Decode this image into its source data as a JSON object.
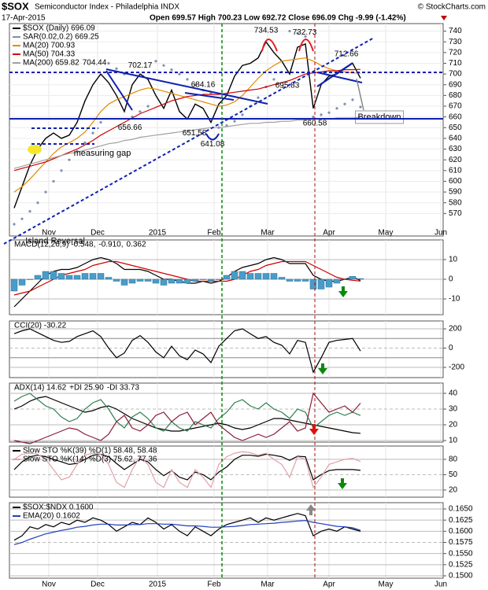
{
  "header": {
    "symbol": "$SOX",
    "name": "Semiconductor Index - Philadelphia INDX",
    "date": "17-Apr-2015",
    "quote": "Open 699.57 High 700.23 Low 692.72 Close 696.09 Chg -9.99 (-1.42%)",
    "credit": "© StockCharts.com"
  },
  "chart_data": [
    {
      "type": "line",
      "legend": "stacked",
      "xlim": [
        -0.6,
        54.5
      ],
      "xticks": [
        {
          "value": 4.4,
          "label": "Nov"
        },
        {
          "value": 10.6,
          "label": "Dec"
        },
        {
          "value": 18.2,
          "label": "2015"
        },
        {
          "value": 25.4,
          "label": "Feb"
        },
        {
          "value": 32.2,
          "label": "Mar"
        },
        {
          "value": 40,
          "label": "Apr"
        },
        {
          "value": 47.2,
          "label": "May"
        },
        {
          "value": 54.2,
          "label": "Jun"
        }
      ],
      "ylim": [
        549,
        747
      ],
      "yticks": [
        570,
        580,
        590,
        600,
        610,
        620,
        630,
        640,
        650,
        660,
        670,
        680,
        690,
        700,
        710,
        720,
        730,
        740
      ],
      "grid": true,
      "series": [
        {
          "name": "$SOX (Daily) 696.09",
          "color": "#000000",
          "kind": "line",
          "values": [
            575,
            595,
            615,
            630,
            640,
            645,
            640,
            643,
            655,
            675,
            690,
            700,
            692,
            680,
            665,
            690,
            700,
            695,
            680,
            668,
            685,
            665,
            658,
            672,
            668,
            655,
            672,
            680,
            698,
            708,
            710,
            715,
            730,
            720,
            712,
            700,
            725,
            728,
            668,
            690,
            698,
            700,
            705,
            710,
            696.09
          ]
        },
        {
          "name": "SAR(0.02,0.2) 669.25",
          "color": "#7f8fb0",
          "kind": "dots",
          "values": [
            560,
            565,
            572,
            580,
            590,
            600,
            610,
            620,
            628,
            636,
            645,
            655,
            710,
            705,
            700,
            660,
            665,
            670,
            712,
            708,
            704,
            700,
            695,
            690,
            685,
            682,
            650,
            652,
            656,
            662,
            670,
            678,
            688,
            695,
            702,
            740,
            738,
            735,
            660,
            662,
            664,
            668,
            672,
            676,
            669.25
          ]
        },
        {
          "name": "MA(20) 700.93",
          "color": "#e08a00",
          "kind": "line",
          "values": [
            590,
            595,
            602,
            610,
            618,
            626,
            632,
            636,
            640,
            646,
            655,
            665,
            672,
            676,
            679,
            682,
            685,
            687,
            686,
            684,
            682,
            680,
            678,
            676,
            674,
            672,
            670,
            671,
            674,
            680,
            688,
            696,
            703,
            708,
            712,
            713,
            714,
            715,
            712,
            708,
            705,
            703,
            702,
            701,
            700.93
          ]
        },
        {
          "name": "MA(50) 704.33",
          "color": "#d00000",
          "kind": "line",
          "values": [
            610,
            612,
            614,
            616,
            618,
            621,
            624,
            627,
            630,
            634,
            638,
            643,
            647,
            651,
            655,
            659,
            663,
            666,
            669,
            672,
            675,
            677,
            679,
            680,
            681,
            681,
            681,
            682,
            683,
            684,
            685,
            686,
            688,
            690,
            692,
            694,
            697,
            700,
            701,
            702,
            703,
            703,
            704,
            704,
            704.33
          ]
        },
        {
          "name": "MA(200) 659.82",
          "color": "#a0a0a0",
          "kind": "line",
          "values": [
            612,
            614,
            616,
            618,
            620,
            622,
            624,
            626,
            627,
            629,
            631,
            633,
            635,
            636,
            638,
            639,
            641,
            642,
            643,
            644,
            645,
            646,
            647,
            648,
            649,
            650,
            650,
            651,
            652,
            653,
            654,
            654,
            655,
            655,
            656,
            656,
            657,
            657,
            658,
            658,
            658,
            659,
            659,
            659,
            659.82
          ]
        }
      ],
      "price_labels": [
        {
          "x": 10.2,
          "value": 704.44,
          "pos": "above"
        },
        {
          "x": 16,
          "value": 702.17,
          "pos": "above"
        },
        {
          "x": 24,
          "value": 684.16,
          "pos": "above"
        },
        {
          "x": 14.7,
          "value": 656.66,
          "pos": "below"
        },
        {
          "x": 22.9,
          "value": 651.58,
          "pos": "below"
        },
        {
          "x": 25.2,
          "value": 641.08,
          "pos": "below"
        },
        {
          "x": 32,
          "value": 734.53,
          "pos": "above"
        },
        {
          "x": 36.9,
          "value": 732.73,
          "pos": "above"
        },
        {
          "x": 34.7,
          "value": 695.83,
          "pos": "below"
        },
        {
          "x": 38.2,
          "value": 660.58,
          "pos": "below"
        },
        {
          "x": 42.2,
          "value": 712.66,
          "pos": "above"
        }
      ],
      "annotations": [
        {
          "text": "measuring gap",
          "x": 11.2,
          "y": 626,
          "color": "#1f3fbf"
        },
        {
          "text": "Breakdown",
          "x": 46.4,
          "y": 659.7,
          "color": "#d00000"
        },
        {
          "text": "Island Reversal",
          "x": 5.2,
          "y": 544,
          "color": "#1f3fbf"
        }
      ]
    },
    {
      "type": "line",
      "legend": "inline",
      "xlim": [
        -0.6,
        54.5
      ],
      "ylim": [
        -18,
        20
      ],
      "yticks": [
        -10,
        0,
        10
      ],
      "grid": true,
      "series": [
        {
          "name": "MACD(12,26,9) -0.548,",
          "color": "#000000",
          "kind": "line",
          "values": [
            -14,
            -10,
            -6,
            -2,
            2,
            4,
            5,
            5,
            6,
            8,
            10,
            11,
            10,
            8,
            5,
            5,
            5,
            4,
            2,
            0,
            0,
            -1,
            -2,
            -2,
            -1,
            -2,
            -1,
            1,
            4,
            6,
            7,
            8,
            10,
            11,
            10,
            8,
            8,
            8,
            2,
            0,
            -1,
            -1,
            0,
            1,
            -0.548
          ]
        },
        {
          "name": "-0.910,",
          "color": "#d00000",
          "kind": "line",
          "values": [
            -8,
            -7,
            -6,
            -4,
            -2,
            0,
            2,
            3,
            4,
            5,
            7,
            8,
            9,
            9,
            8,
            7,
            6,
            5,
            4,
            3,
            2,
            1,
            0,
            -1,
            -1,
            -1,
            -1,
            -1,
            0,
            2,
            4,
            5,
            7,
            8,
            9,
            9,
            9,
            9,
            7,
            5,
            3,
            1,
            0,
            -0.5,
            -0.91
          ]
        },
        {
          "name": "0.362",
          "color": "#4a9cc8",
          "kind": "bar",
          "values": [
            -6,
            -3,
            0,
            2,
            4,
            4,
            3,
            2,
            2,
            3,
            3,
            3,
            1,
            -1,
            -3,
            -2,
            -1,
            -1,
            -2,
            -3,
            -2,
            -2,
            -2,
            -1,
            0,
            -1,
            0,
            2,
            4,
            4,
            3,
            3,
            3,
            3,
            1,
            -1,
            -1,
            -1,
            -5,
            -5,
            -4,
            -2,
            0,
            1.5,
            0.362
          ]
        }
      ]
    },
    {
      "type": "line",
      "legend": "inline",
      "xlim": [
        -0.6,
        54.5
      ],
      "ylim": [
        -306,
        282
      ],
      "yticks": [
        -200,
        0,
        200
      ],
      "grid": true,
      "hlines": [
        100,
        -100
      ],
      "series": [
        {
          "name": "CCI(20) -30.22",
          "color": "#000000",
          "kind": "line",
          "values": [
            150,
            180,
            200,
            160,
            120,
            80,
            60,
            70,
            120,
            150,
            180,
            120,
            0,
            -100,
            -50,
            80,
            130,
            60,
            -40,
            -100,
            20,
            -80,
            -120,
            -20,
            -60,
            -150,
            20,
            100,
            180,
            200,
            150,
            100,
            120,
            60,
            30,
            -60,
            80,
            60,
            -250,
            -100,
            60,
            80,
            90,
            100,
            -30.22
          ]
        }
      ]
    },
    {
      "type": "line",
      "legend": "inline",
      "xlim": [
        -0.6,
        54.5
      ],
      "ylim": [
        9,
        46.5
      ],
      "yticks": [
        10,
        20,
        30,
        40
      ],
      "grid": true,
      "series": [
        {
          "name": "ADX(14) 14.62",
          "color": "#000000",
          "kind": "line",
          "values": [
            30,
            32,
            35,
            37,
            38,
            36,
            34,
            32,
            30,
            28,
            29,
            31,
            32,
            30,
            27,
            24,
            22,
            20,
            18,
            17,
            16,
            16,
            17,
            18,
            19,
            20,
            21,
            20,
            18,
            17,
            18,
            20,
            22,
            24,
            24,
            23,
            22,
            21,
            20,
            19,
            18,
            17,
            16,
            15,
            14.62
          ]
        },
        {
          "name": "+DI 25.90",
          "color": "#2e7d4f",
          "kind": "line",
          "values": [
            35,
            38,
            40,
            36,
            32,
            30,
            25,
            22,
            24,
            30,
            34,
            36,
            30,
            22,
            18,
            25,
            28,
            24,
            18,
            16,
            22,
            18,
            16,
            22,
            20,
            18,
            24,
            28,
            34,
            36,
            32,
            30,
            34,
            30,
            28,
            24,
            30,
            28,
            18,
            22,
            26,
            28,
            26,
            28,
            25.9
          ]
        },
        {
          "name": "-DI 33.73",
          "color": "#8b1c3a",
          "kind": "line",
          "values": [
            10,
            9,
            8,
            10,
            12,
            14,
            16,
            18,
            17,
            14,
            12,
            10,
            14,
            22,
            26,
            18,
            16,
            20,
            26,
            28,
            22,
            26,
            28,
            20,
            24,
            28,
            20,
            16,
            12,
            10,
            12,
            14,
            12,
            14,
            18,
            22,
            16,
            18,
            40,
            34,
            28,
            30,
            32,
            28,
            33.73
          ]
        }
      ]
    },
    {
      "type": "line",
      "legend": "stacked",
      "xlim": [
        -0.6,
        54.5
      ],
      "ylim": [
        6,
        106
      ],
      "yticks": [
        20,
        50,
        80
      ],
      "grid": true,
      "series": [
        {
          "name": "Slow STO %K(39) %D(1) 58.48, 58.48",
          "color": "#000000",
          "kind": "line",
          "values": [
            60,
            75,
            85,
            88,
            85,
            80,
            75,
            70,
            72,
            80,
            88,
            90,
            85,
            72,
            60,
            70,
            80,
            75,
            60,
            48,
            58,
            45,
            40,
            55,
            50,
            40,
            55,
            65,
            80,
            88,
            88,
            86,
            90,
            88,
            85,
            78,
            86,
            85,
            40,
            50,
            58,
            60,
            60,
            60,
            58.48
          ]
        },
        {
          "name": "Slow STO %K(14) %D(3) 75.62, 77.36",
          "color": "#e0a0a8",
          "kind": "line",
          "values": [
            80,
            90,
            92,
            90,
            80,
            60,
            40,
            45,
            70,
            88,
            92,
            90,
            70,
            35,
            25,
            60,
            85,
            70,
            35,
            25,
            60,
            35,
            25,
            60,
            45,
            25,
            70,
            85,
            92,
            95,
            93,
            88,
            92,
            80,
            70,
            45,
            85,
            80,
            25,
            45,
            70,
            75,
            80,
            82,
            75.62
          ]
        }
      ]
    },
    {
      "type": "line",
      "legend": "stacked",
      "xlim": [
        -0.6,
        54.5
      ],
      "xticks": [
        {
          "value": 4.4,
          "label": "Nov"
        },
        {
          "value": 10.6,
          "label": "Dec"
        },
        {
          "value": 18.2,
          "label": "2015"
        },
        {
          "value": 25.4,
          "label": "Feb"
        },
        {
          "value": 32.2,
          "label": "Mar"
        },
        {
          "value": 40,
          "label": "Apr"
        },
        {
          "value": 47.2,
          "label": "May"
        },
        {
          "value": 54.2,
          "label": "Jun"
        }
      ],
      "ylim": [
        0.14947,
        0.16641
      ],
      "yticks": [
        {
          "value": 0.15,
          "label": "0.1500"
        },
        {
          "value": 0.1525,
          "label": "0.1525"
        },
        {
          "value": 0.155,
          "label": "0.1550"
        },
        {
          "value": 0.1575,
          "label": "0.1575"
        },
        {
          "value": 0.16,
          "label": "0.1600"
        },
        {
          "value": 0.1625,
          "label": "0.1625"
        },
        {
          "value": 0.165,
          "label": "0.1650"
        }
      ],
      "grid": true,
      "series": [
        {
          "name": "$SOX:$NDX 0.1600",
          "color": "#000000",
          "kind": "line",
          "values": [
            0.158,
            0.159,
            0.161,
            0.1605,
            0.1615,
            0.161,
            0.162,
            0.1615,
            0.1625,
            0.162,
            0.163,
            0.1625,
            0.1615,
            0.16,
            0.161,
            0.162,
            0.1615,
            0.163,
            0.162,
            0.1605,
            0.1615,
            0.16,
            0.159,
            0.161,
            0.16,
            0.159,
            0.1605,
            0.1615,
            0.162,
            0.1625,
            0.163,
            0.162,
            0.163,
            0.1625,
            0.163,
            0.1635,
            0.164,
            0.1635,
            0.159,
            0.16,
            0.1605,
            0.16,
            0.161,
            0.1605,
            0.16
          ]
        },
        {
          "name": "EMA(20) 0.1602",
          "color": "#1f3fbf",
          "kind": "line",
          "values": [
            0.157,
            0.1575,
            0.1582,
            0.1588,
            0.1594,
            0.1598,
            0.1602,
            0.1605,
            0.1609,
            0.1611,
            0.1614,
            0.1616,
            0.1616,
            0.1614,
            0.1614,
            0.1615,
            0.1615,
            0.1617,
            0.1617,
            0.1616,
            0.1616,
            0.1614,
            0.1612,
            0.1612,
            0.1611,
            0.1609,
            0.1609,
            0.161,
            0.1611,
            0.1613,
            0.1615,
            0.1616,
            0.1617,
            0.1618,
            0.162,
            0.1621,
            0.1623,
            0.1624,
            0.162,
            0.1617,
            0.1614,
            0.1611,
            0.161,
            0.1608,
            0.1602
          ]
        }
      ]
    }
  ]
}
